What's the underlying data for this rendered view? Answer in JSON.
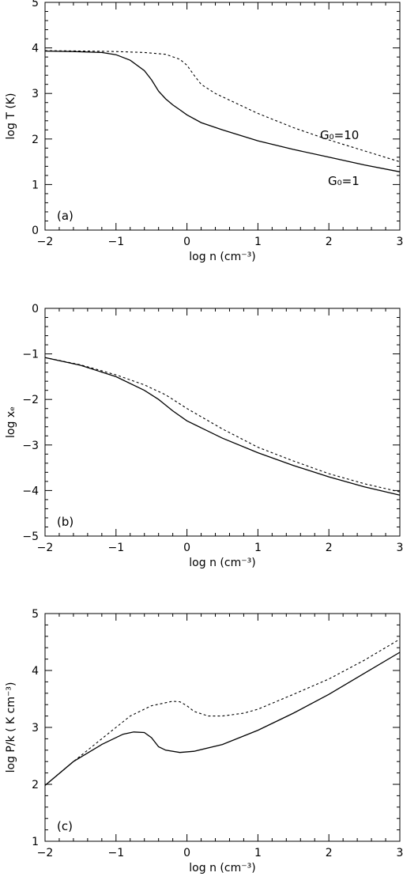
{
  "chart_data": [
    {
      "type": "line",
      "panel_label": "(a)",
      "xlabel": "log n (cm⁻³)",
      "ylabel": "log T (K)",
      "xlim": [
        -2,
        3
      ],
      "ylim": [
        0,
        5
      ],
      "xticks": [
        "−2",
        "−1",
        "0",
        "1",
        "2",
        "3"
      ],
      "yticks": [
        "0",
        "1",
        "2",
        "3",
        "4",
        "5"
      ],
      "series": [
        {
          "name": "G₀=1",
          "style": "solid",
          "x": [
            -2,
            -1.6,
            -1.2,
            -1.0,
            -0.8,
            -0.6,
            -0.5,
            -0.4,
            -0.3,
            -0.2,
            -0.1,
            0,
            0.2,
            0.5,
            1.0,
            1.5,
            2.0,
            2.5,
            3.0
          ],
          "y": [
            3.93,
            3.92,
            3.9,
            3.85,
            3.73,
            3.5,
            3.3,
            3.05,
            2.88,
            2.75,
            2.64,
            2.53,
            2.36,
            2.2,
            1.96,
            1.77,
            1.6,
            1.43,
            1.28
          ]
        },
        {
          "name": "G₀=10",
          "style": "dashed",
          "x": [
            -2,
            -1.4,
            -1.0,
            -0.6,
            -0.3,
            -0.1,
            0,
            0.1,
            0.2,
            0.4,
            0.7,
            1.0,
            1.5,
            2.0,
            2.5,
            3.0
          ],
          "y": [
            3.94,
            3.93,
            3.92,
            3.9,
            3.86,
            3.75,
            3.62,
            3.4,
            3.2,
            3.0,
            2.78,
            2.56,
            2.25,
            1.98,
            1.74,
            1.5
          ]
        }
      ]
    },
    {
      "type": "line",
      "panel_label": "(b)",
      "xlabel": "log n (cm⁻³)",
      "ylabel": "log xₑ",
      "xlim": [
        -2,
        3
      ],
      "ylim": [
        -5,
        0
      ],
      "xticks": [
        "−2",
        "−1",
        "0",
        "1",
        "2",
        "3"
      ],
      "yticks": [
        "0",
        "−1",
        "−2",
        "−3",
        "−4",
        "−5"
      ],
      "series": [
        {
          "name": "G₀=1",
          "style": "solid",
          "x": [
            -2,
            -1.5,
            -1.0,
            -0.6,
            -0.4,
            -0.2,
            0,
            0.5,
            1.0,
            1.5,
            2.0,
            2.5,
            3.0
          ],
          "y": [
            -1.08,
            -1.25,
            -1.5,
            -1.8,
            -2.0,
            -2.25,
            -2.47,
            -2.85,
            -3.17,
            -3.45,
            -3.7,
            -3.92,
            -4.1
          ]
        },
        {
          "name": "G₀=10",
          "style": "dashed",
          "x": [
            -2,
            -1.5,
            -1.0,
            -0.6,
            -0.3,
            0,
            0.5,
            1.0,
            1.5,
            2.0,
            2.5,
            3.0
          ],
          "y": [
            -1.08,
            -1.24,
            -1.46,
            -1.68,
            -1.9,
            -2.2,
            -2.65,
            -3.05,
            -3.35,
            -3.63,
            -3.85,
            -4.03
          ]
        }
      ]
    },
    {
      "type": "line",
      "panel_label": "(c)",
      "xlabel": "log n (cm⁻³)",
      "ylabel": "log P/k ( K cm⁻³)",
      "xlim": [
        -2,
        3
      ],
      "ylim": [
        1,
        5
      ],
      "xticks": [
        "−2",
        "−1",
        "0",
        "1",
        "2",
        "3"
      ],
      "yticks": [
        "1",
        "2",
        "3",
        "4",
        "5"
      ],
      "series": [
        {
          "name": "G₀=1",
          "style": "solid",
          "x": [
            -2,
            -1.6,
            -1.2,
            -0.9,
            -0.75,
            -0.6,
            -0.5,
            -0.4,
            -0.3,
            -0.1,
            0.1,
            0.5,
            1.0,
            1.5,
            2.0,
            2.5,
            3.0
          ],
          "y": [
            1.98,
            2.4,
            2.7,
            2.88,
            2.92,
            2.91,
            2.82,
            2.66,
            2.6,
            2.56,
            2.58,
            2.7,
            2.95,
            3.25,
            3.58,
            3.95,
            4.32
          ]
        },
        {
          "name": "G₀=10",
          "style": "dashed",
          "x": [
            -2,
            -1.6,
            -1.2,
            -0.8,
            -0.5,
            -0.2,
            -0.1,
            0,
            0.1,
            0.3,
            0.5,
            0.8,
            1.0,
            1.5,
            2.0,
            2.5,
            3.0
          ],
          "y": [
            1.98,
            2.4,
            2.8,
            3.2,
            3.38,
            3.46,
            3.45,
            3.38,
            3.28,
            3.2,
            3.2,
            3.25,
            3.32,
            3.58,
            3.85,
            4.18,
            4.55
          ]
        }
      ]
    }
  ],
  "annotations": [
    {
      "panel": 0,
      "text": "G₀=10"
    },
    {
      "panel": 0,
      "text": "G₀=1"
    }
  ]
}
